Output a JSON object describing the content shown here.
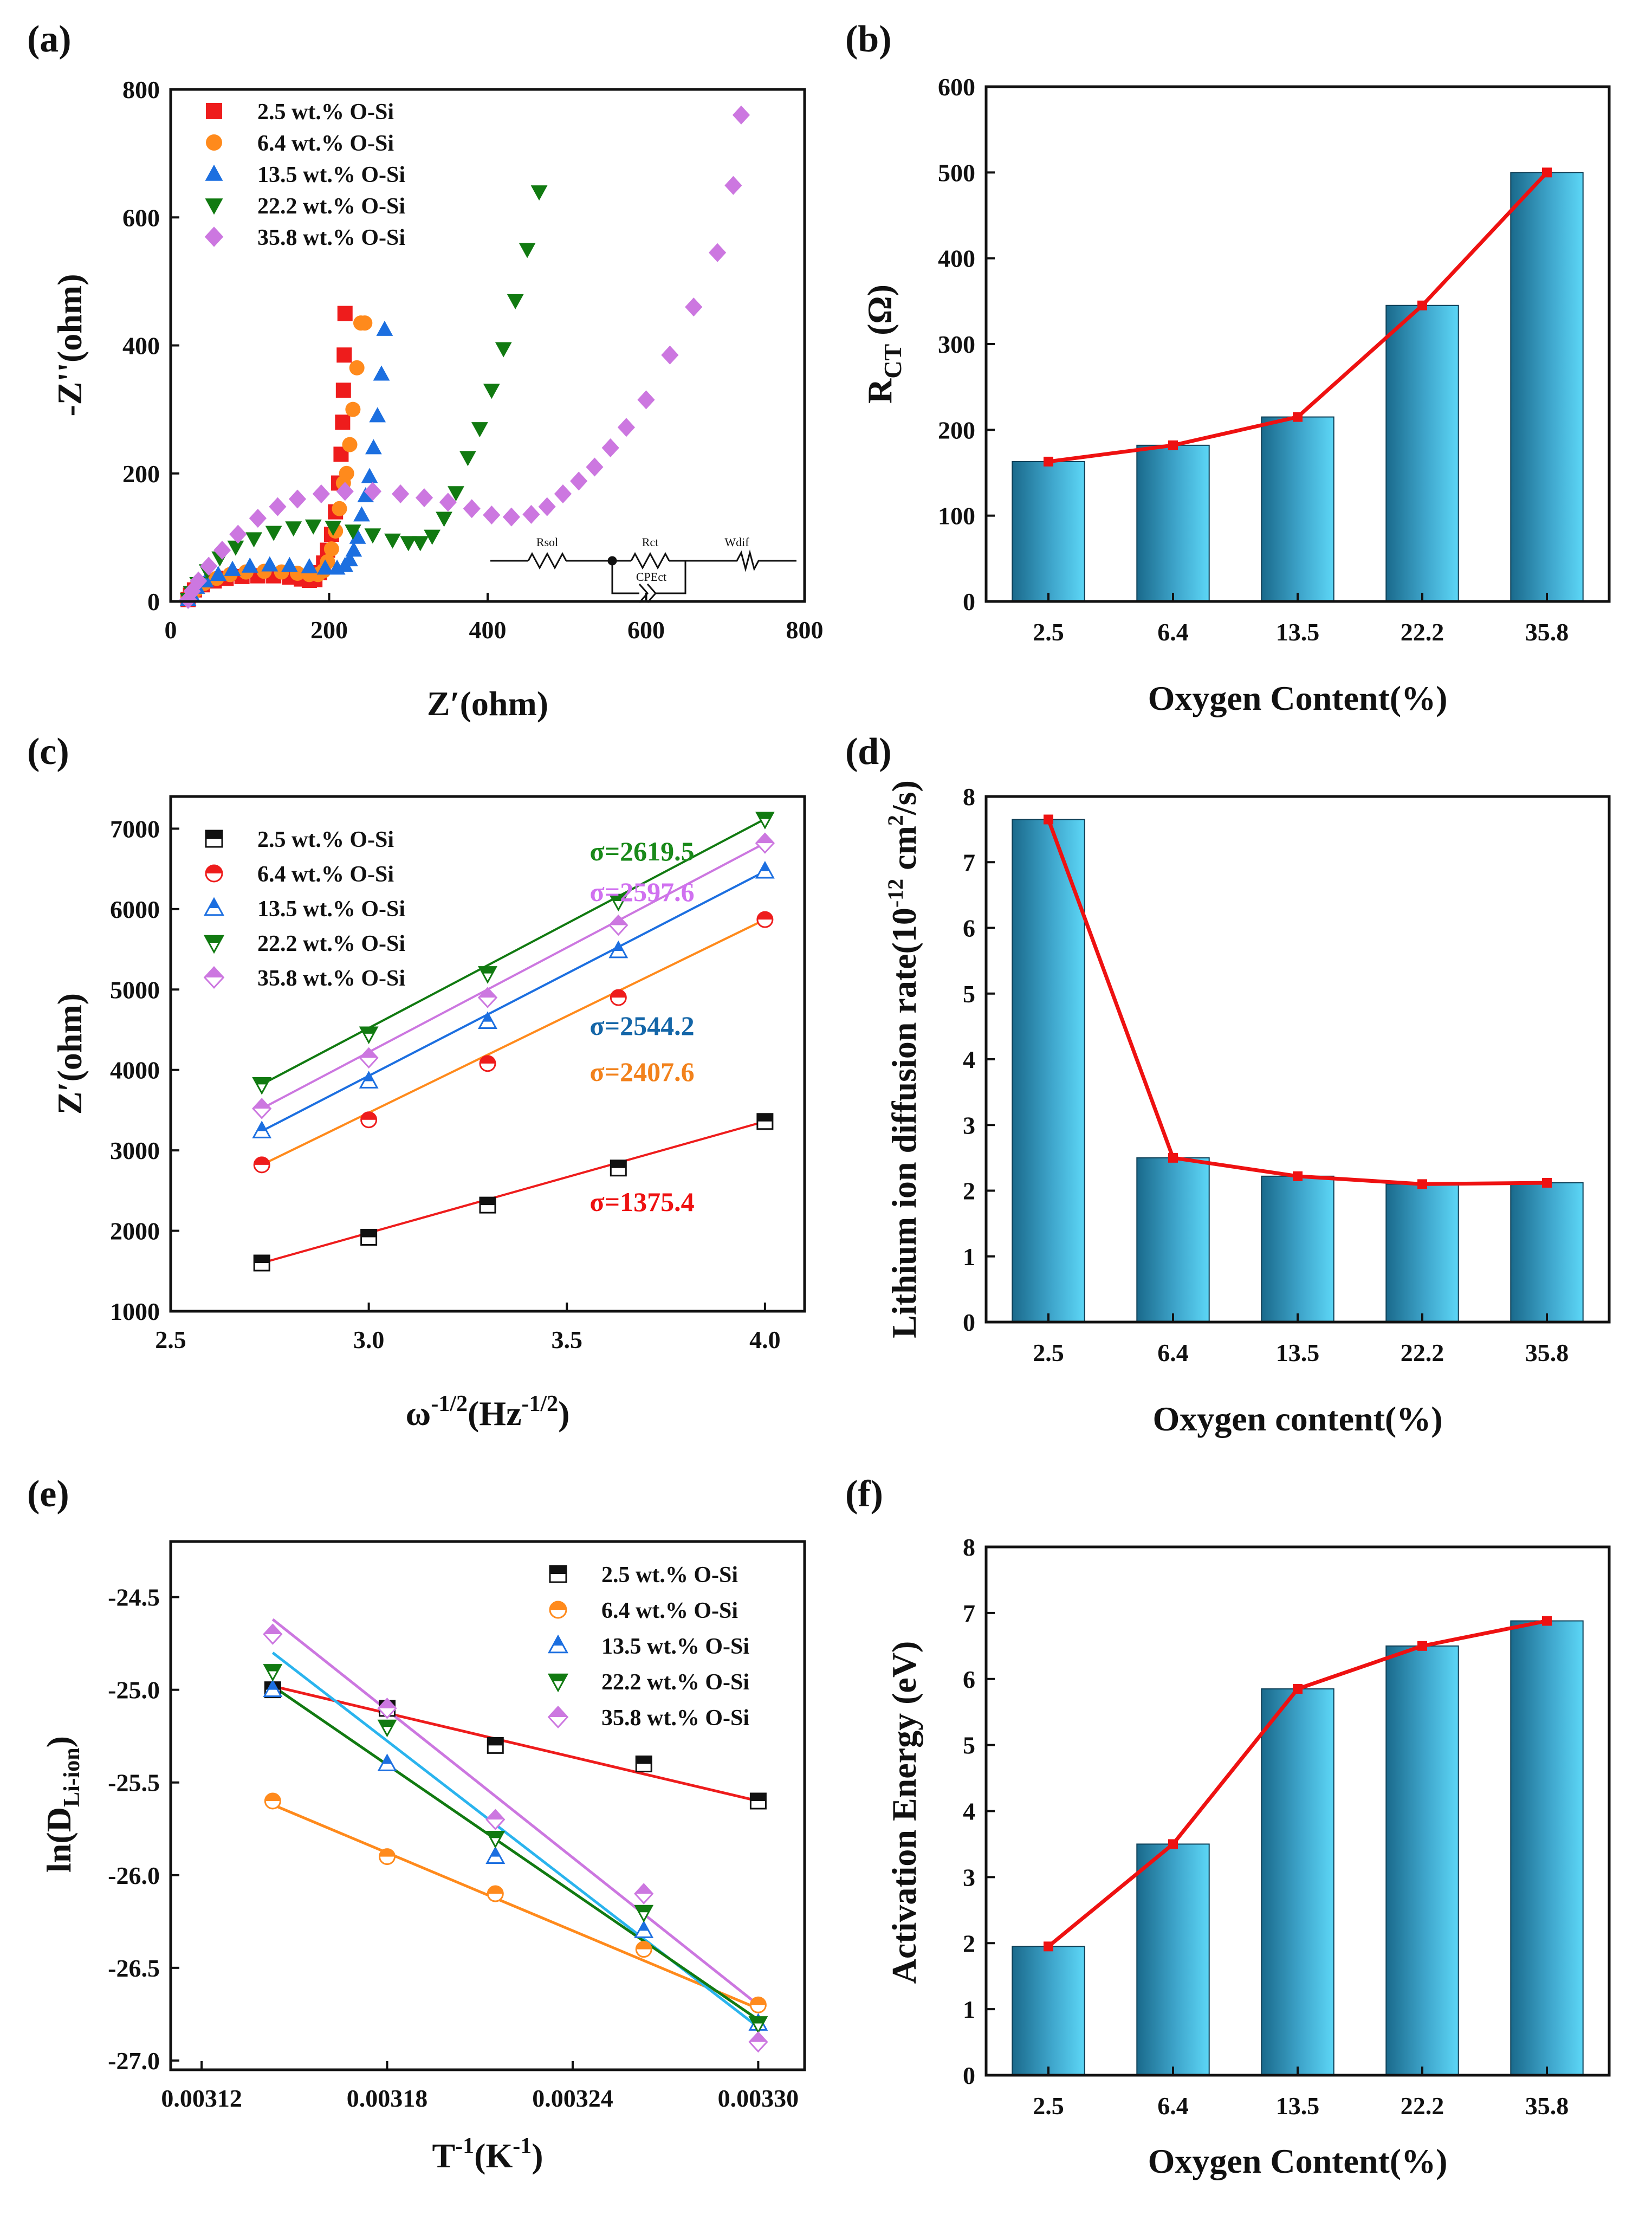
{
  "colors": {
    "red": "#ee1c1c",
    "orange": "#ff8a1c",
    "blue": "#1c6fe0",
    "green": "#117a11",
    "violet": "#cc77e0",
    "black": "#111111",
    "bar_dark": "#1a6a8c",
    "bar_light": "#58d2f4",
    "trend": "#ee1111",
    "sig_green": "#1a8a1a",
    "sig_violet": "#d070f0",
    "sig_blue": "#1466a8",
    "sig_orange": "#f2821c",
    "sig_red": "#ee1111",
    "fit_blue": "#2ab4ee"
  },
  "chart_data": [
    {
      "panel": "(a)",
      "type": "scatter",
      "xlabel": "Z′(ohm)",
      "ylabel": "-Z''(ohm)",
      "xlim": [
        0,
        800
      ],
      "ylim": [
        0,
        800
      ],
      "xticks": [
        "0",
        "200",
        "400",
        "600",
        "800"
      ],
      "yticks": [
        "0",
        "200",
        "400",
        "600",
        "800"
      ],
      "legend_position": "top-left",
      "circuit_labels": [
        "Rsol",
        "Rct",
        "Wdif",
        "CPEct"
      ],
      "series": [
        {
          "name": "2.5 wt.% O-Si",
          "marker": "square",
          "color": "red",
          "x": [
            22,
            25,
            30,
            40,
            55,
            70,
            90,
            110,
            130,
            150,
            165,
            175,
            182,
            188,
            193,
            198,
            203,
            208,
            212,
            215,
            217,
            218,
            219,
            220
          ],
          "y": [
            3,
            10,
            18,
            26,
            32,
            36,
            39,
            40,
            40,
            38,
            35,
            33,
            34,
            45,
            60,
            80,
            105,
            140,
            185,
            230,
            280,
            330,
            385,
            450
          ]
        },
        {
          "name": "6.4 wt.% O-Si",
          "marker": "circle",
          "color": "orange",
          "x": [
            22,
            26,
            32,
            42,
            58,
            75,
            95,
            118,
            140,
            160,
            175,
            186,
            193,
            198,
            203,
            208,
            213,
            218,
            222,
            226,
            230,
            235,
            240,
            245
          ],
          "y": [
            3,
            10,
            18,
            28,
            36,
            42,
            46,
            47,
            46,
            44,
            42,
            42,
            48,
            62,
            82,
            110,
            145,
            185,
            200,
            245,
            300,
            365,
            435,
            435
          ]
        },
        {
          "name": "13.5 wt.% O-Si",
          "marker": "triangle-up",
          "color": "blue",
          "x": [
            22,
            26,
            33,
            44,
            60,
            78,
            100,
            125,
            150,
            175,
            195,
            210,
            220,
            226,
            231,
            236,
            241,
            246,
            251,
            256,
            261,
            266,
            270
          ],
          "y": [
            3,
            12,
            22,
            32,
            42,
            50,
            55,
            57,
            56,
            54,
            52,
            52,
            56,
            65,
            80,
            100,
            135,
            165,
            195,
            240,
            290,
            355,
            425
          ]
        },
        {
          "name": "22.2 wt.% O-Si",
          "marker": "triangle-down",
          "color": "green",
          "x": [
            22,
            26,
            34,
            46,
            62,
            82,
            105,
            130,
            155,
            180,
            205,
            230,
            255,
            280,
            300,
            315,
            330,
            345,
            360,
            375,
            390,
            405,
            420,
            435,
            450,
            465
          ],
          "y": [
            3,
            14,
            28,
            48,
            68,
            85,
            98,
            108,
            115,
            118,
            116,
            110,
            104,
            96,
            92,
            92,
            102,
            130,
            170,
            225,
            270,
            330,
            395,
            470,
            550,
            640
          ]
        },
        {
          "name": "35.8 wt.% O-Si",
          "marker": "diamond",
          "color": "violet",
          "x": [
            22,
            27,
            35,
            48,
            65,
            85,
            110,
            135,
            160,
            190,
            220,
            255,
            290,
            320,
            350,
            380,
            405,
            430,
            455,
            475,
            495,
            515,
            535,
            555,
            575,
            600,
            630,
            660,
            690,
            710,
            720
          ],
          "y": [
            3,
            16,
            32,
            55,
            80,
            105,
            130,
            148,
            160,
            168,
            172,
            172,
            168,
            162,
            155,
            145,
            135,
            132,
            136,
            148,
            168,
            188,
            210,
            240,
            272,
            315,
            385,
            460,
            545,
            650,
            760
          ]
        }
      ]
    },
    {
      "panel": "(b)",
      "type": "bar",
      "xlabel": "Oxygen Content(%)",
      "ylabel": "RCT (Ω)",
      "categories": [
        "2.5",
        "6.4",
        "13.5",
        "22.2",
        "35.8"
      ],
      "values": [
        163,
        182,
        215,
        345,
        500
      ],
      "ylim": [
        0,
        600
      ],
      "yticks": [
        "0",
        "100",
        "200",
        "300",
        "400",
        "500",
        "600"
      ]
    },
    {
      "panel": "(c)",
      "type": "scatter",
      "xlabel": "ω-1/2(Hz-1/2)",
      "ylabel": "Z′(ohm)",
      "xlim": [
        2.5,
        4.1
      ],
      "ylim": [
        1000,
        7400
      ],
      "xticks": [
        "2.5",
        "3.0",
        "3.5",
        "4.0"
      ],
      "yticks": [
        "1000",
        "2000",
        "3000",
        "4000",
        "5000",
        "6000",
        "7000"
      ],
      "legend_position": "top-left",
      "x": [
        2.73,
        3.0,
        3.3,
        3.63,
        4.0
      ],
      "series": [
        {
          "name": "2.5 wt.%  O-Si",
          "marker": "half-square",
          "color": "black",
          "values": [
            1600,
            1920,
            2320,
            2780,
            3360
          ],
          "sigma": "σ=1375.4",
          "sigma_color": "sig_red",
          "fit_color": "red"
        },
        {
          "name": "6.4 wt.%  O-Si",
          "marker": "half-circle",
          "color": "red",
          "values": [
            2820,
            3380,
            4080,
            4900,
            5870
          ],
          "sigma": "σ=2407.6",
          "sigma_color": "sig_orange",
          "fit_color": "orange"
        },
        {
          "name": "13.5 wt.%  O-Si",
          "marker": "half-triangle-up",
          "color": "blue",
          "values": [
            3240,
            3860,
            4600,
            5480,
            6470
          ],
          "sigma": "σ=2544.2",
          "sigma_color": "sig_blue",
          "fit_color": "blue"
        },
        {
          "name": "22.2 wt.%  O-Si",
          "marker": "half-triangle-down",
          "color": "green",
          "values": [
            3820,
            4450,
            5200,
            6100,
            7120
          ],
          "sigma": "σ=2619.5",
          "sigma_color": "sig_green",
          "fit_color": "green"
        },
        {
          "name": "35.8 wt.%  O-Si",
          "marker": "half-diamond",
          "color": "violet",
          "values": [
            3520,
            4150,
            4900,
            5800,
            6820
          ],
          "sigma": "σ=2597.6",
          "sigma_color": "sig_violet",
          "fit_color": "violet"
        }
      ]
    },
    {
      "panel": "(d)",
      "type": "bar",
      "xlabel": "Oxygen content(%)",
      "ylabel": "Lithium ion diffusion rate(10-12 cm2/s)",
      "categories": [
        "2.5",
        "6.4",
        "13.5",
        "22.2",
        "35.8"
      ],
      "values": [
        7.65,
        2.5,
        2.22,
        2.1,
        2.12
      ],
      "ylim": [
        0,
        8
      ],
      "yticks": [
        "0",
        "1",
        "2",
        "3",
        "4",
        "5",
        "6",
        "7",
        "8"
      ]
    },
    {
      "panel": "(e)",
      "type": "scatter",
      "xlabel": "T-1(K-1)",
      "ylabel": "ln(DLi-ion)",
      "xlim": [
        0.00311,
        0.003315
      ],
      "ylim": [
        -27.05,
        -24.2
      ],
      "xticks": [
        "0.00312",
        "0.00318",
        "0.00324",
        "0.00330"
      ],
      "yticks": [
        "-24.5",
        "-25.0",
        "-25.5",
        "-26.0",
        "-26.5",
        "-27.0"
      ],
      "legend_position": "top-right",
      "x": [
        0.003143,
        0.00318,
        0.003215,
        0.003263,
        0.0033
      ],
      "series": [
        {
          "name": "2.5 wt.% O-Si",
          "marker": "half-square",
          "color": "black",
          "values": [
            -25.0,
            -25.1,
            -25.3,
            -25.4,
            -25.6
          ],
          "fit": [
            -24.98,
            -25.6
          ],
          "fit_color": "red"
        },
        {
          "name": "6.4 wt.% O-Si",
          "marker": "half-circle",
          "color": "orange",
          "values": [
            -25.6,
            -25.9,
            -26.1,
            -26.4,
            -26.7
          ],
          "fit": [
            -25.62,
            -26.72
          ],
          "fit_color": "orange"
        },
        {
          "name": "13.5 wt.% O-Si",
          "marker": "half-triangle-up",
          "color": "blue",
          "values": [
            -25.0,
            -25.4,
            -25.9,
            -26.3,
            -26.8
          ],
          "fit": [
            -24.8,
            -26.82
          ],
          "fit_color": "fit_blue"
        },
        {
          "name": "22.2 wt.% O-Si",
          "marker": "half-triangle-down",
          "color": "green",
          "values": [
            -24.9,
            -25.2,
            -25.8,
            -26.2,
            -26.8
          ],
          "fit": [
            -24.98,
            -26.78
          ],
          "fit_color": "green"
        },
        {
          "name": "35.8 wt.% O-Si",
          "marker": "half-diamond",
          "color": "violet",
          "values": [
            -24.7,
            -25.1,
            -25.7,
            -26.1,
            -26.9
          ],
          "fit": [
            -24.62,
            -26.7
          ],
          "fit_color": "violet"
        }
      ]
    },
    {
      "panel": "(f)",
      "type": "bar",
      "xlabel": "Oxygen Content(%)",
      "ylabel": "Activation Energy (eV)",
      "categories": [
        "2.5",
        "6.4",
        "13.5",
        "22.2",
        "35.8"
      ],
      "values": [
        1.95,
        3.5,
        5.85,
        6.5,
        6.88
      ],
      "ylim": [
        0,
        8
      ],
      "yticks": [
        "0",
        "1",
        "2",
        "3",
        "4",
        "5",
        "6",
        "7",
        "8"
      ]
    }
  ]
}
